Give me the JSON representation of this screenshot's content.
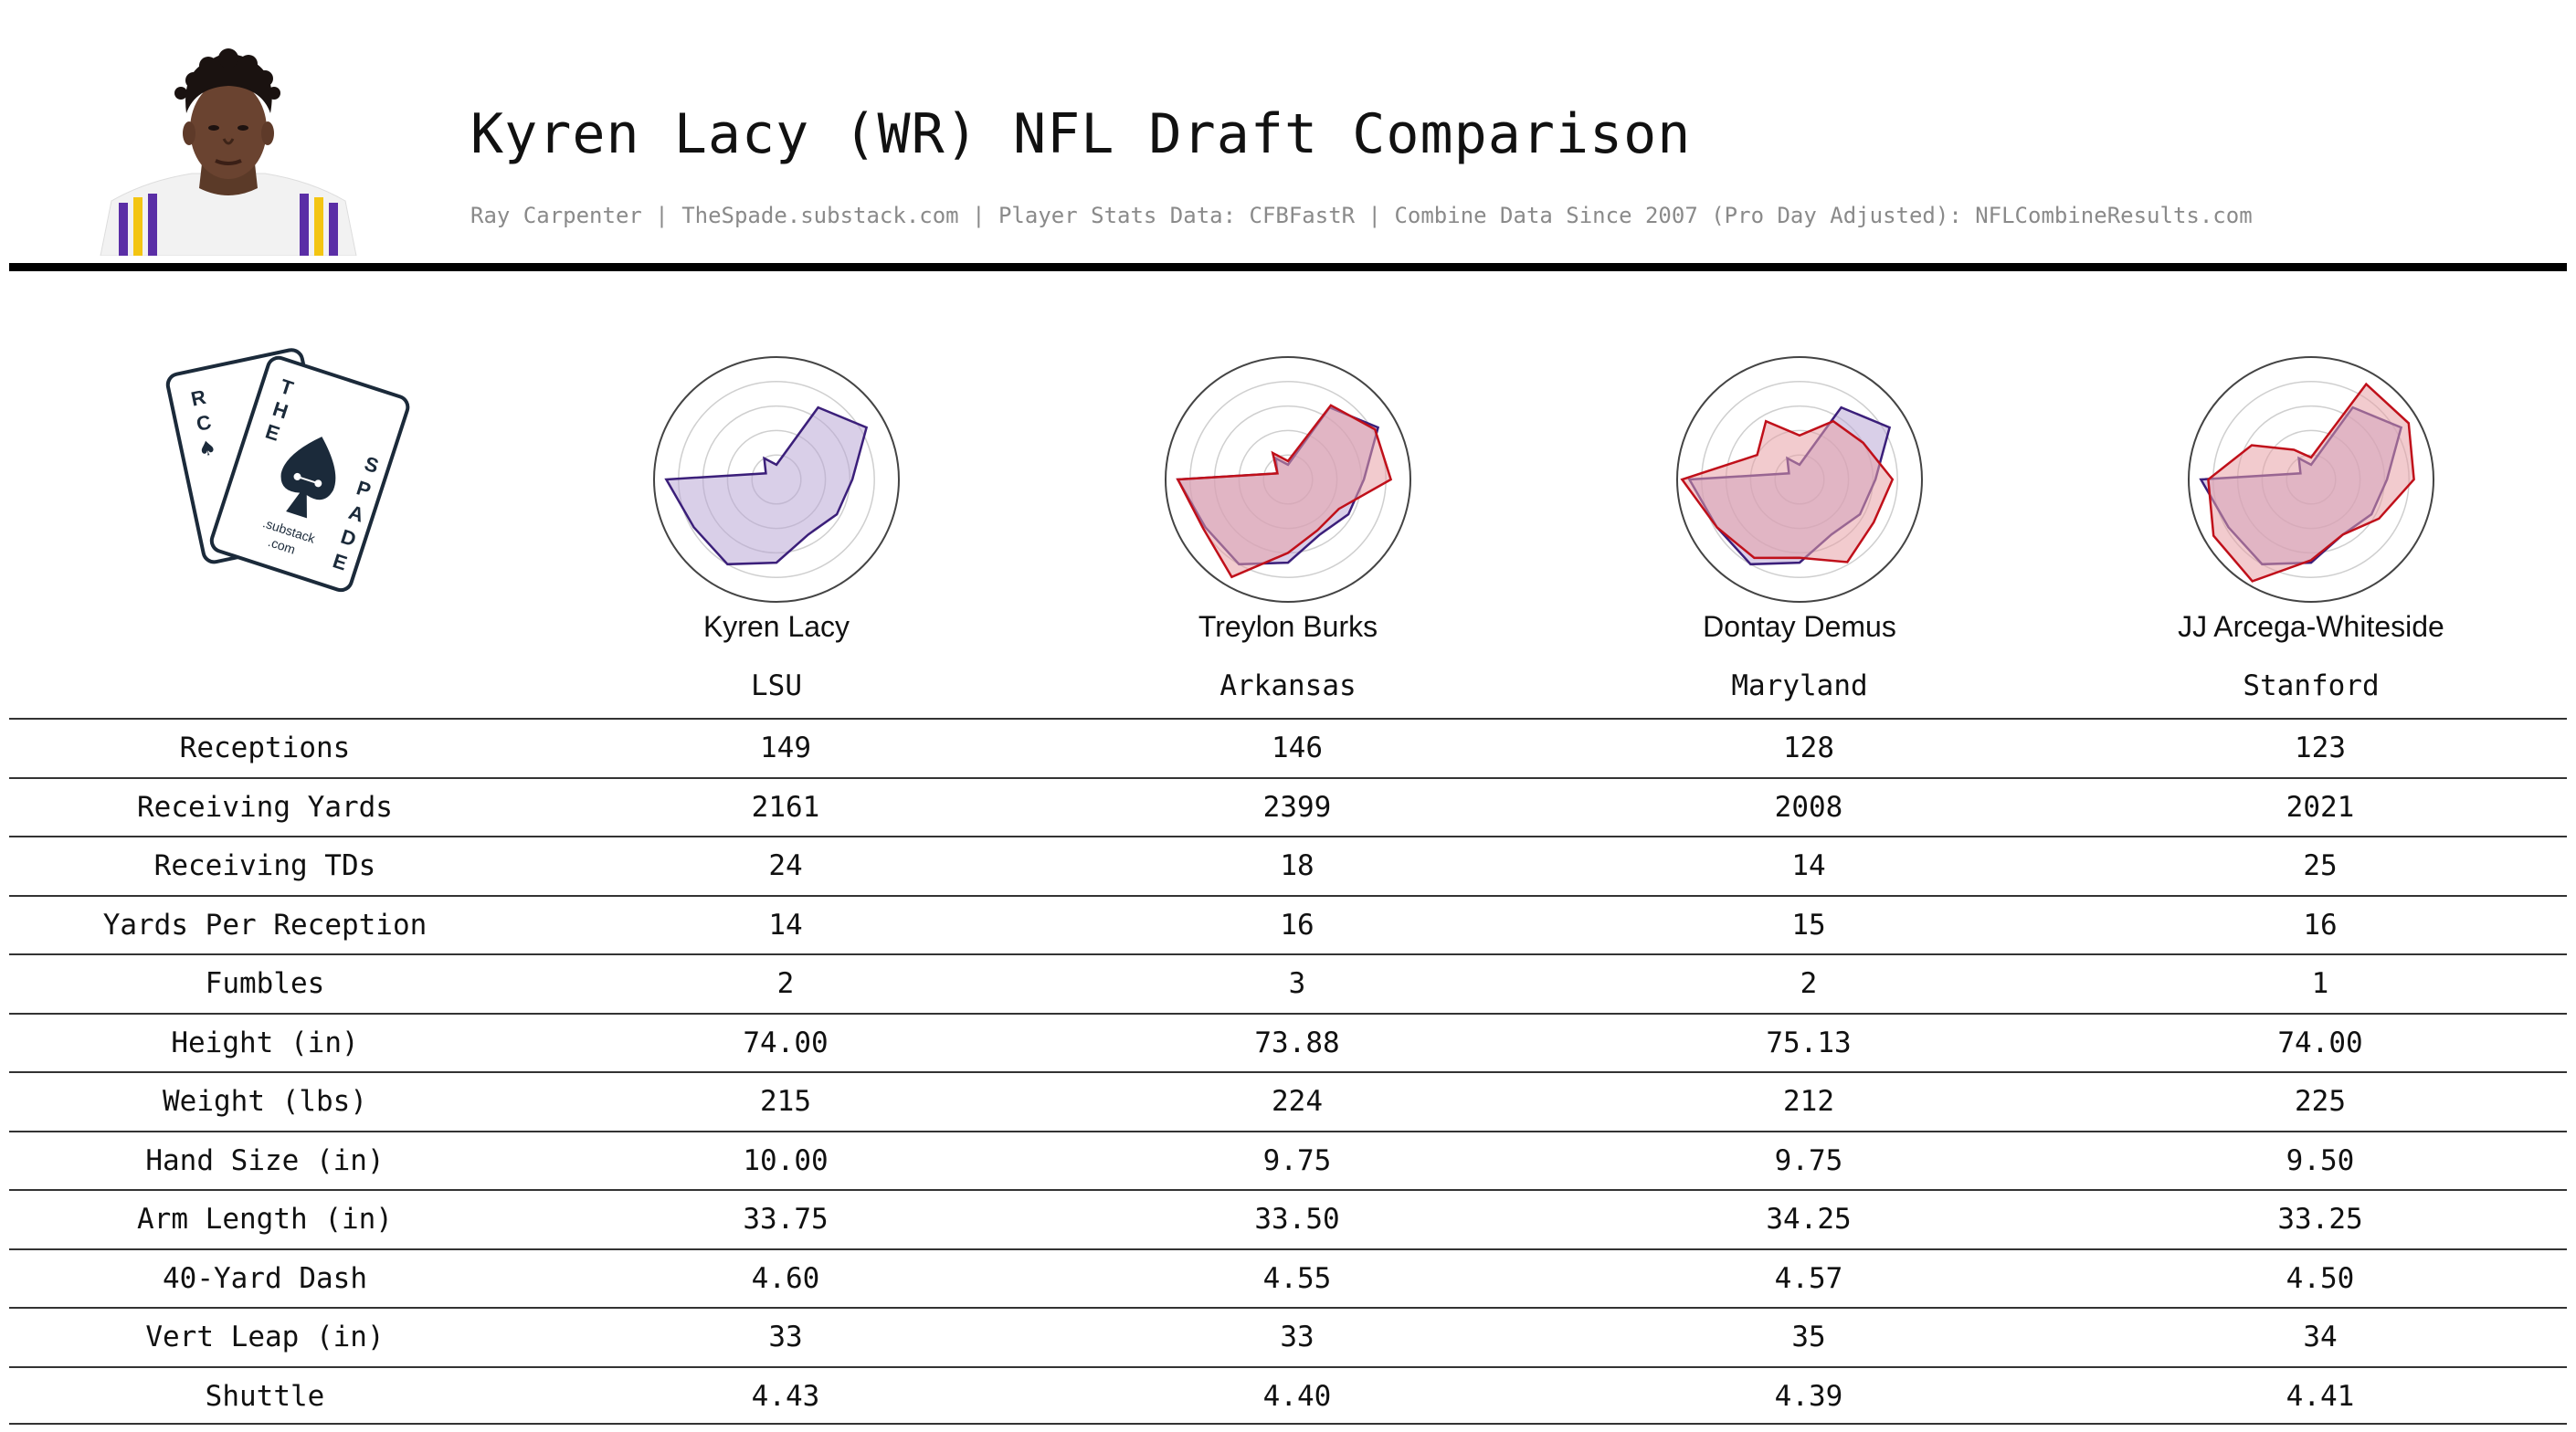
{
  "header": {
    "title": "Kyren Lacy (WR) NFL Draft Comparison",
    "subtitle": "Ray Carpenter | TheSpade.substack.com | Player Stats Data: CFBFastR | Combine Data Since 2007 (Pro Day Adjusted): NFLCombineResults.com"
  },
  "logo": {
    "text_left": "RCHE",
    "text_right": "THE SPADE",
    "url_line1": ".substack",
    "url_line2": ".com",
    "icon": "spade-icon"
  },
  "colors": {
    "base_line": "#3b1f7a",
    "base_fill": "#b9a8d6",
    "comp_line": "#c0101a",
    "comp_fill": "#e7a0a6",
    "rule": "#000000",
    "subtitle": "#8a8a8a"
  },
  "chart_data": {
    "type": "radar",
    "axes_count": 12,
    "axis_range": [
      0,
      1
    ],
    "grid": true,
    "base_series": {
      "name": "Kyren Lacy",
      "values": [
        0.62,
        0.85,
        0.68,
        0.12,
        0.2,
        0.1,
        0.9,
        0.78,
        0.8,
        0.68,
        0.52,
        0.57
      ]
    },
    "players": [
      {
        "name": "Kyren Lacy",
        "school": "LSU",
        "compare_values": null
      },
      {
        "name": "Treylon Burks",
        "school": "Arkansas",
        "compare_values": [
          0.84,
          0.82,
          0.7,
          0.15,
          0.25,
          0.1,
          0.9,
          0.8,
          0.92,
          0.6,
          0.48,
          0.48
        ]
      },
      {
        "name": "Dontay Demus",
        "school": "Maryland",
        "compare_values": [
          0.76,
          0.6,
          0.55,
          0.36,
          0.55,
          0.4,
          0.96,
          0.78,
          0.74,
          0.64,
          0.78,
          0.7
        ]
      },
      {
        "name": "JJ Arcega-Whiteside",
        "school": "Stanford",
        "compare_values": [
          0.84,
          0.92,
          0.9,
          0.18,
          0.28,
          0.56,
          0.84,
          0.92,
          0.96,
          0.66,
          0.52,
          0.64
        ]
      }
    ]
  },
  "table": {
    "rows": [
      {
        "label": "Receptions",
        "values": [
          "149",
          "146",
          "128",
          "123"
        ]
      },
      {
        "label": "Receiving Yards",
        "values": [
          "2161",
          "2399",
          "2008",
          "2021"
        ]
      },
      {
        "label": "Receiving TDs",
        "values": [
          "24",
          "18",
          "14",
          "25"
        ]
      },
      {
        "label": "Yards Per Reception",
        "values": [
          "14",
          "16",
          "15",
          "16"
        ]
      },
      {
        "label": "Fumbles",
        "values": [
          "2",
          "3",
          "2",
          "1"
        ]
      },
      {
        "label": "Height (in)",
        "values": [
          "74.00",
          "73.88",
          "75.13",
          "74.00"
        ]
      },
      {
        "label": "Weight (lbs)",
        "values": [
          "215",
          "224",
          "212",
          "225"
        ]
      },
      {
        "label": "Hand Size (in)",
        "values": [
          "10.00",
          "9.75",
          "9.75",
          "9.50"
        ]
      },
      {
        "label": "Arm Length (in)",
        "values": [
          "33.75",
          "33.50",
          "34.25",
          "33.25"
        ]
      },
      {
        "label": "40-Yard Dash",
        "values": [
          "4.60",
          "4.55",
          "4.57",
          "4.50"
        ]
      },
      {
        "label": "Vert Leap (in)",
        "values": [
          "33",
          "33",
          "35",
          "34"
        ]
      },
      {
        "label": "Shuttle",
        "values": [
          "4.43",
          "4.40",
          "4.39",
          "4.41"
        ]
      }
    ]
  }
}
